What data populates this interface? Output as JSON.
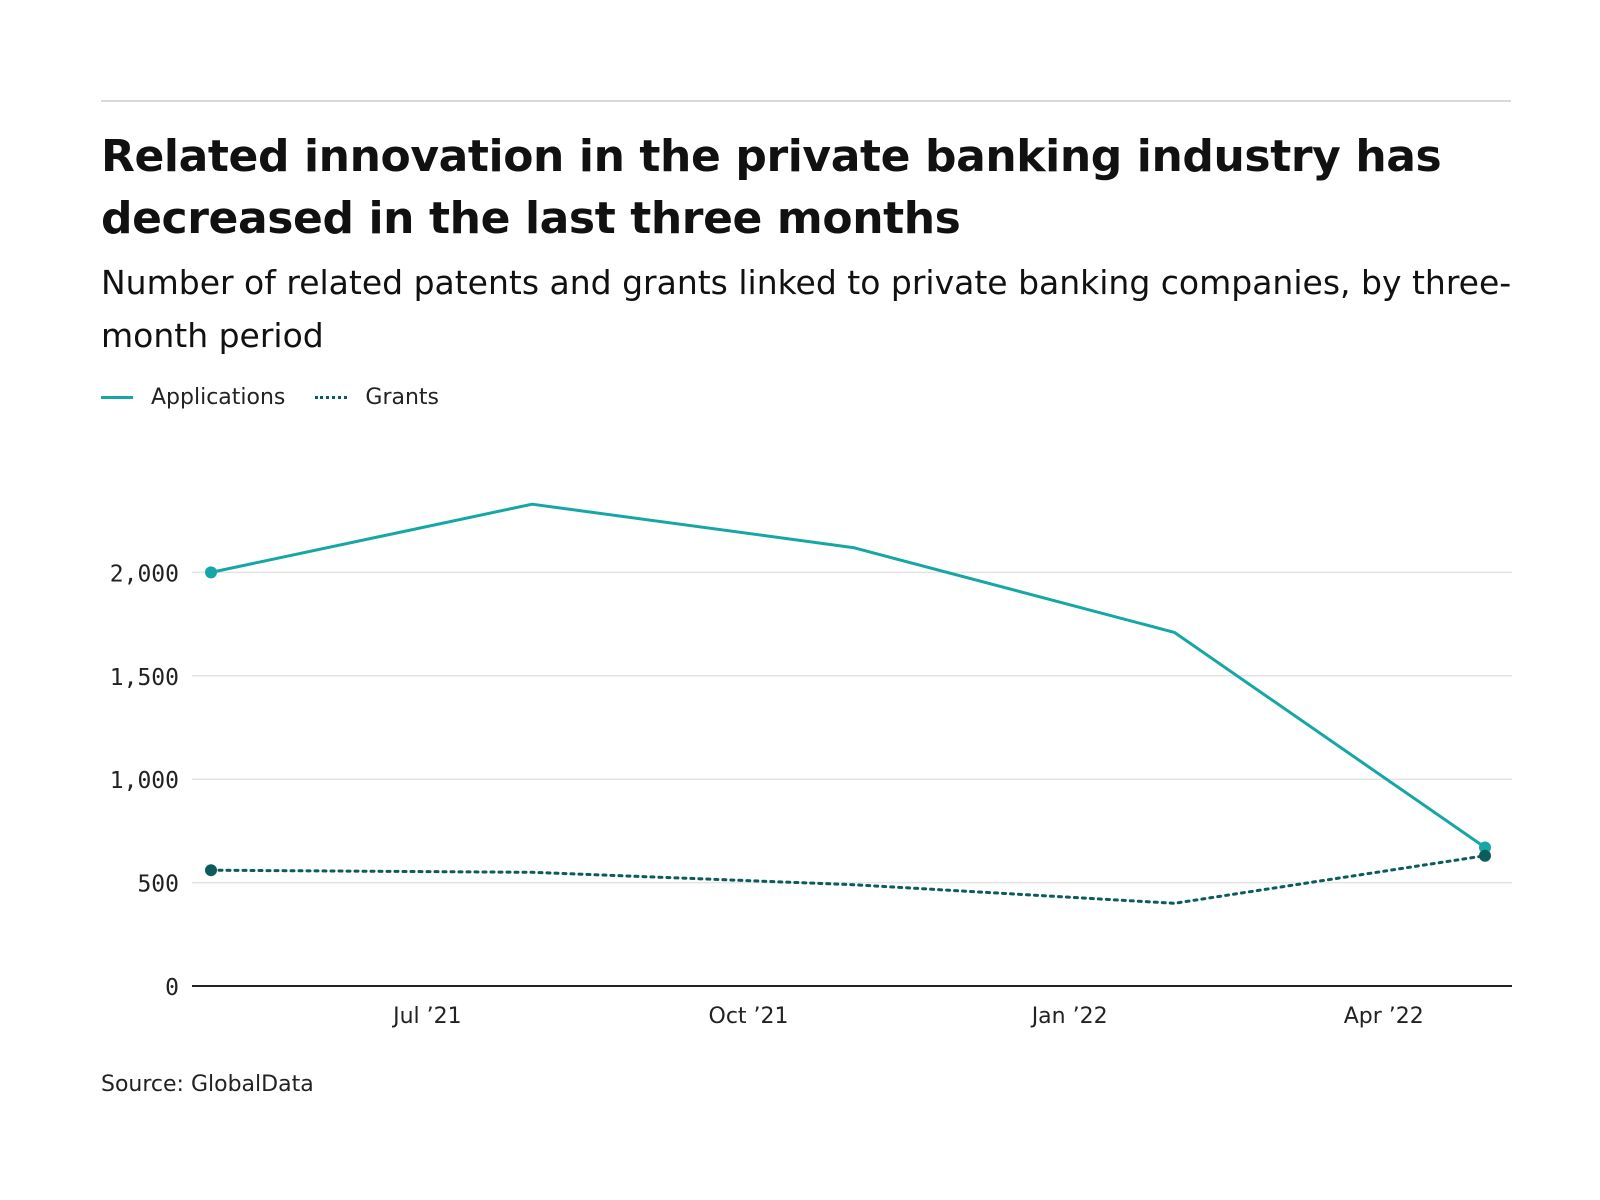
{
  "title": "Related innovation in the private banking industry has decreased in the last three months",
  "subtitle": "Number of related patents and grants linked to private banking companies, by three-month period",
  "legend": {
    "applications": "Applications",
    "grants": "Grants"
  },
  "source": "Source: GlobalData",
  "colors": {
    "applications": "#16a6a6",
    "grants": "#0d5c5c",
    "grid": "#e3e3e3",
    "axis": "#222222"
  },
  "chart_data": {
    "type": "line",
    "x": [
      "2021-04-30",
      "2021-07-31",
      "2021-10-31",
      "2022-01-31",
      "2022-04-30"
    ],
    "series": [
      {
        "name": "Applications",
        "values": [
          2000,
          2330,
          2120,
          1710,
          670
        ],
        "style": "solid"
      },
      {
        "name": "Grants",
        "values": [
          560,
          550,
          490,
          400,
          630
        ],
        "style": "dotted"
      }
    ],
    "xticks": [
      {
        "label": "Jul ’21",
        "date": "2021-07-01"
      },
      {
        "label": "Oct ’21",
        "date": "2021-10-01"
      },
      {
        "label": "Jan ’22",
        "date": "2022-01-01"
      },
      {
        "label": "Apr ’22",
        "date": "2022-04-01"
      }
    ],
    "yticks": [
      {
        "label": "0",
        "value": 0
      },
      {
        "label": "500",
        "value": 500
      },
      {
        "label": "1,000",
        "value": 1000
      },
      {
        "label": "1,500",
        "value": 1500
      },
      {
        "label": "2,000",
        "value": 2000
      }
    ],
    "xlim": [
      "2021-04-30",
      "2022-04-30"
    ],
    "ylim": [
      0,
      2500
    ],
    "grid": true,
    "legend_position": "top-left"
  }
}
